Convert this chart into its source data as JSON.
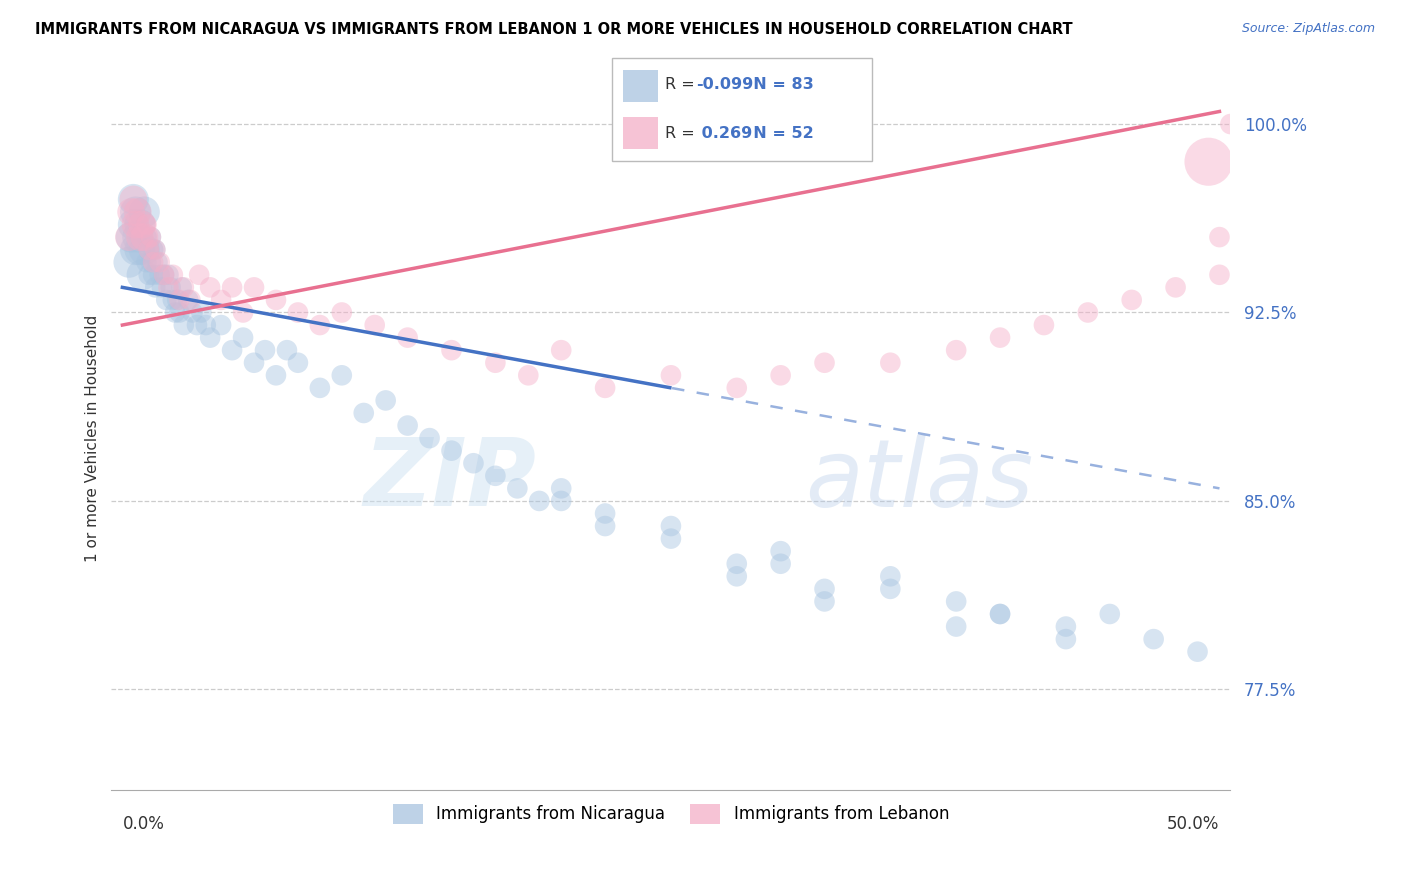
{
  "title": "IMMIGRANTS FROM NICARAGUA VS IMMIGRANTS FROM LEBANON 1 OR MORE VEHICLES IN HOUSEHOLD CORRELATION CHART",
  "source": "Source: ZipAtlas.com",
  "ylabel": "1 or more Vehicles in Household",
  "xlim": [
    0.0,
    50.0
  ],
  "ylim": [
    73.5,
    101.5
  ],
  "legend_blue_r": "-0.099",
  "legend_blue_n": "83",
  "legend_pink_r": "0.269",
  "legend_pink_n": "52",
  "blue_color": "#a8c4e0",
  "pink_color": "#f4afc8",
  "blue_line_color": "#4472c4",
  "pink_line_color": "#e87090",
  "ytick_vals": [
    77.5,
    85.0,
    92.5,
    100.0
  ],
  "blue_trend_x0": 0.0,
  "blue_trend_y0": 93.5,
  "blue_trend_x1": 50.0,
  "blue_trend_y1": 85.5,
  "blue_solid_end": 25.0,
  "pink_trend_x0": 0.0,
  "pink_trend_y0": 92.0,
  "pink_trend_x1": 50.0,
  "pink_trend_y1": 100.5,
  "nic_x": [
    0.3,
    0.4,
    0.5,
    0.5,
    0.6,
    0.6,
    0.7,
    0.8,
    0.8,
    0.9,
    1.0,
    1.0,
    1.1,
    1.1,
    1.2,
    1.2,
    1.3,
    1.3,
    1.4,
    1.4,
    1.5,
    1.5,
    1.6,
    1.7,
    1.8,
    1.9,
    2.0,
    2.1,
    2.2,
    2.3,
    2.4,
    2.5,
    2.6,
    2.7,
    2.8,
    3.0,
    3.2,
    3.4,
    3.6,
    3.8,
    4.0,
    4.5,
    5.0,
    5.5,
    6.0,
    6.5,
    7.0,
    7.5,
    8.0,
    9.0,
    10.0,
    11.0,
    12.0,
    13.0,
    14.0,
    15.0,
    16.0,
    17.0,
    18.0,
    19.0,
    20.0,
    22.0,
    25.0,
    28.0,
    30.0,
    32.0,
    35.0,
    38.0,
    40.0,
    43.0,
    45.0,
    47.0,
    49.0,
    20.0,
    22.0,
    25.0,
    28.0,
    30.0,
    32.0,
    35.0,
    38.0,
    40.0,
    43.0
  ],
  "nic_y": [
    94.5,
    95.5,
    96.0,
    97.0,
    95.0,
    96.5,
    95.5,
    95.0,
    96.0,
    94.0,
    95.0,
    96.5,
    94.5,
    95.5,
    94.0,
    95.0,
    94.5,
    95.5,
    94.0,
    95.0,
    93.5,
    95.0,
    94.5,
    94.0,
    93.5,
    94.0,
    93.0,
    94.0,
    93.5,
    93.0,
    92.5,
    93.0,
    92.5,
    93.5,
    92.0,
    93.0,
    92.5,
    92.0,
    92.5,
    92.0,
    91.5,
    92.0,
    91.0,
    91.5,
    90.5,
    91.0,
    90.0,
    91.0,
    90.5,
    89.5,
    90.0,
    88.5,
    89.0,
    88.0,
    87.5,
    87.0,
    86.5,
    86.0,
    85.5,
    85.0,
    85.0,
    84.0,
    83.5,
    82.0,
    82.5,
    81.5,
    82.0,
    81.0,
    80.5,
    80.0,
    80.5,
    79.5,
    79.0,
    85.5,
    84.5,
    84.0,
    82.5,
    83.0,
    81.0,
    81.5,
    80.0,
    80.5,
    79.5
  ],
  "leb_x": [
    0.3,
    0.4,
    0.5,
    0.6,
    0.7,
    0.8,
    0.9,
    1.0,
    1.1,
    1.2,
    1.3,
    1.4,
    1.5,
    1.7,
    1.9,
    2.1,
    2.3,
    2.6,
    2.8,
    3.1,
    3.5,
    4.0,
    4.5,
    5.0,
    5.5,
    6.0,
    7.0,
    8.0,
    9.0,
    10.0,
    11.5,
    13.0,
    15.0,
    17.0,
    18.5,
    20.0,
    22.0,
    25.0,
    28.0,
    30.0,
    32.0,
    35.0,
    38.0,
    40.0,
    42.0,
    44.0,
    46.0,
    48.0,
    49.5,
    50.0,
    50.0,
    50.5
  ],
  "leb_y": [
    95.5,
    96.5,
    97.0,
    96.0,
    96.5,
    95.5,
    96.0,
    95.5,
    96.0,
    95.0,
    95.5,
    94.5,
    95.0,
    94.5,
    94.0,
    93.5,
    94.0,
    93.0,
    93.5,
    93.0,
    94.0,
    93.5,
    93.0,
    93.5,
    92.5,
    93.5,
    93.0,
    92.5,
    92.0,
    92.5,
    92.0,
    91.5,
    91.0,
    90.5,
    90.0,
    91.0,
    89.5,
    90.0,
    89.5,
    90.0,
    90.5,
    90.5,
    91.0,
    91.5,
    92.0,
    92.5,
    93.0,
    93.5,
    98.5,
    94.0,
    95.5,
    100.0
  ],
  "nic_size": 220,
  "leb_size": 220,
  "large_nic_idx": [
    0,
    1,
    2,
    3,
    4,
    5,
    6,
    7,
    8,
    9,
    10,
    11
  ],
  "large_nic_size": 500,
  "large_leb_idx": [
    0,
    1,
    2,
    3,
    4,
    5,
    6,
    7
  ],
  "large_leb_size": 400,
  "giant_leb_idx": 48,
  "giant_leb_size": 1200
}
